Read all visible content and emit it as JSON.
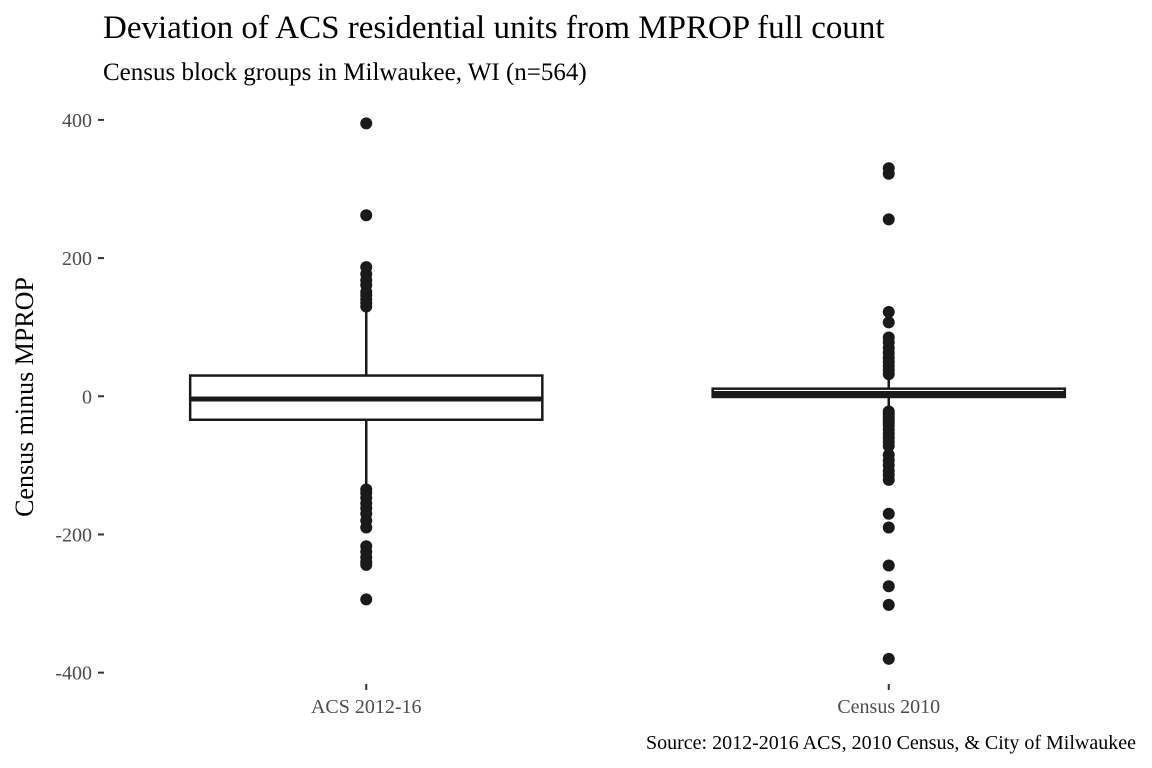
{
  "chart_data": {
    "type": "boxplot",
    "title": "Deviation of ACS residential units from MPROP full count",
    "subtitle": "Census block groups in Milwaukee, WI (n=564)",
    "xlabel": "",
    "ylabel": "Census minus MPROP",
    "caption": "Source: 2012-2016 ACS, 2010 Census, & City of Milwaukee",
    "ylim": [
      -415,
      410
    ],
    "yticks": [
      {
        "value": -400,
        "label": "-400"
      },
      {
        "value": -200,
        "label": "-200"
      },
      {
        "value": 0,
        "label": "0"
      },
      {
        "value": 200,
        "label": "200"
      },
      {
        "value": 400,
        "label": "400"
      }
    ],
    "grid": false,
    "legend": "none",
    "categories": [
      "ACS 2012-16",
      "Census 2010"
    ],
    "boxes": [
      {
        "category": "ACS 2012-16",
        "q1": -34,
        "median": -4,
        "q3": 30,
        "whisker_low": -127,
        "whisker_high": 125,
        "outliers": [
          395,
          262,
          187,
          177,
          168,
          161,
          151,
          146,
          140,
          135,
          130,
          -135,
          -140,
          -147,
          -155,
          -162,
          -170,
          -180,
          -190,
          -217,
          -225,
          -233,
          -240,
          -244,
          -294
        ]
      },
      {
        "category": "Census 2010",
        "q1": -1,
        "median": 4,
        "q3": 11,
        "whisker_low": -20,
        "whisker_high": 24,
        "outliers": [
          330,
          322,
          256,
          122,
          107,
          85,
          78,
          70,
          63,
          56,
          50,
          44,
          38,
          32,
          -22,
          -26,
          -30,
          -34,
          -38,
          -42,
          -48,
          -54,
          -60,
          -66,
          -72,
          -85,
          -93,
          -100,
          -108,
          -114,
          -121,
          -170,
          -190,
          -245,
          -275,
          -302,
          -380
        ]
      }
    ],
    "colors": {
      "box_fill": "#ffffff",
      "box_stroke": "#1a1a1a",
      "point": "#1a1a1a",
      "tick": "#333333",
      "tick_label": "#4d4d4d"
    }
  }
}
